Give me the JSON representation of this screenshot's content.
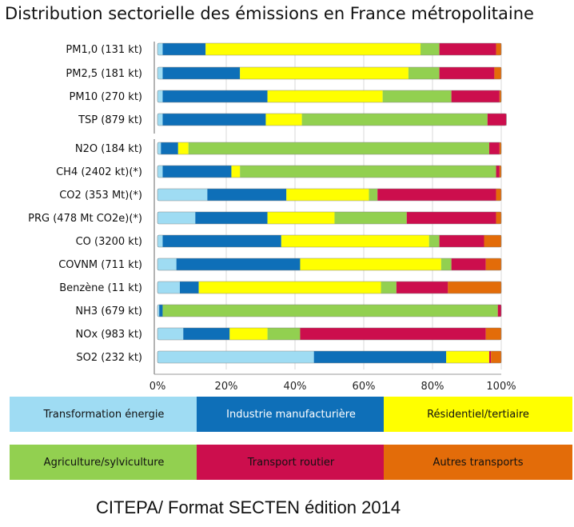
{
  "title": "Distribution sectorielle des émissions en France métropolitaine",
  "footer": "CITEPA/ Format SECTEN édition 2014",
  "chart_data": {
    "type": "bar",
    "orientation": "horizontal",
    "stacked": true,
    "title": "Distribution sectorielle des émissions en France métropolitaine",
    "xlim": [
      0,
      100
    ],
    "x_ticks": [
      "0%",
      "20%",
      "40%",
      "60%",
      "80%",
      "100%"
    ],
    "legend_position": "bottom",
    "categories": [
      "PM1,0 (131 kt)",
      "PM2,5 (181 kt)",
      "PM10 (270 kt)",
      "TSP (879 kt)",
      "N2O (184 kt)",
      "CH4 (2402 kt)(*)",
      "CO2 (353 Mt)(*)",
      "PRG (478 Mt CO2e)(*)",
      "CO (3200 kt)",
      "COVNM (711 kt)",
      "Benzène (11 kt)",
      "NH3 (679 kt)",
      "NOx (983 kt)",
      "SO2 (232 kt)"
    ],
    "series": [
      {
        "name": "Transformation énergie",
        "color": "#9fdcf3",
        "values": [
          1.5,
          1.5,
          1.5,
          1.5,
          1,
          1.5,
          14.5,
          11,
          1.5,
          5.5,
          6.5,
          0.5,
          7.5,
          45.5
        ]
      },
      {
        "name": "Industrie manufacturière",
        "color": "#0e6fb8",
        "values": [
          12.5,
          22.5,
          30.5,
          30,
          5,
          20,
          23,
          21,
          34.5,
          36,
          5.5,
          1,
          13.5,
          38.5
        ]
      },
      {
        "name": "Résidentiel/tertiaire",
        "color": "#ffff00",
        "values": [
          62.5,
          49,
          33.5,
          10.5,
          3,
          2.5,
          24,
          19.5,
          43,
          41,
          53,
          0,
          11,
          12.5
        ]
      },
      {
        "name": "Agriculture/sylviculture",
        "color": "#92d050",
        "values": [
          5.5,
          9,
          20,
          54,
          87.5,
          74.5,
          2.5,
          21,
          3,
          3,
          4.5,
          97.5,
          9.5,
          0
        ]
      },
      {
        "name": "Transport routier",
        "color": "#cc0e4d",
        "values": [
          16.5,
          16,
          14,
          5.5,
          3,
          1,
          34.5,
          26,
          13,
          10,
          15,
          1,
          54,
          0.5
        ]
      },
      {
        "name": "Autres transports",
        "color": "#e36c09",
        "values": [
          1.5,
          2,
          0.5,
          0,
          0.5,
          0.5,
          1.5,
          1.5,
          5,
          4.5,
          15.5,
          0,
          4.5,
          3
        ]
      }
    ]
  }
}
